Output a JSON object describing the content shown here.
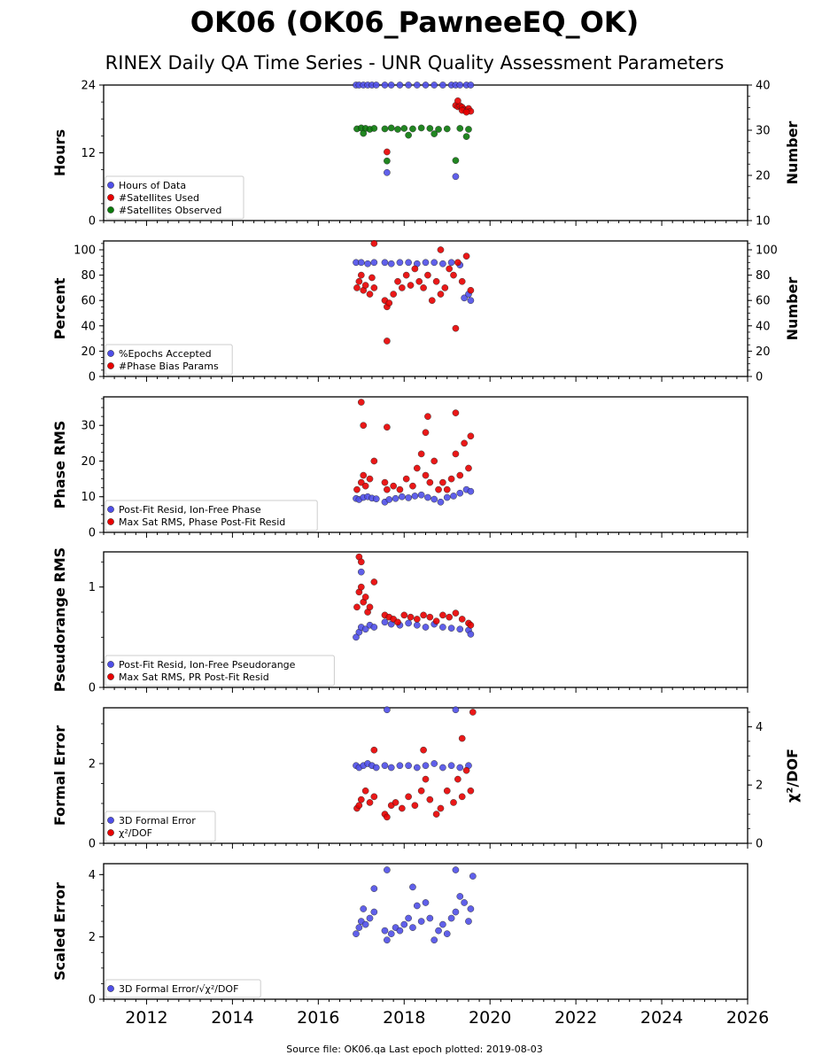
{
  "title": "OK06 (OK06_PawneeEQ_OK)",
  "subtitle": "RINEX Daily QA Time Series - UNR Quality Assessment Parameters",
  "footer": "Source file: OK06.qa Last epoch plotted: 2019-08-03",
  "colors": {
    "blue": "#4f4fe8",
    "red": "#e80000",
    "green": "#0a7a0a"
  },
  "chart_data": [
    {
      "type": "scatter",
      "ylabel": "Hours",
      "ylim": [
        0,
        24
      ],
      "yticks": [
        "0",
        "12",
        "24"
      ],
      "ytick_values": [
        0,
        12,
        24
      ],
      "y2label": "Number",
      "y2lim": [
        10,
        40
      ],
      "y2ticks": [
        "10",
        "20",
        "30",
        "40"
      ],
      "y2tick_values": [
        10,
        20,
        30,
        40
      ],
      "xlim": [
        2011.0,
        2026.0
      ],
      "legend": "bottom-left",
      "series": [
        {
          "name": "Hours of Data",
          "axis": "left",
          "color": "blue",
          "x": [
            2016.88,
            2016.95,
            2017.05,
            2017.15,
            2017.25,
            2017.35,
            2017.55,
            2017.7,
            2017.9,
            2018.1,
            2018.3,
            2018.5,
            2018.7,
            2018.9,
            2019.1,
            2019.2,
            2019.3,
            2019.45,
            2019.55,
            2017.6,
            2019.2
          ],
          "y": [
            24,
            24,
            24,
            24,
            24,
            24,
            24,
            24,
            24,
            24,
            24,
            24,
            24,
            24,
            24,
            24,
            24,
            24,
            24,
            8.5,
            7.8
          ]
        },
        {
          "name": "#Satellites Used",
          "axis": "right",
          "color": "red",
          "x": [
            2019.2,
            2019.25,
            2019.3,
            2019.35,
            2019.4,
            2019.45,
            2019.5,
            2019.55,
            2019.25,
            2019.35,
            2019.45,
            2017.6
          ],
          "y": [
            35.5,
            35.2,
            35.4,
            35.1,
            34.6,
            34.3,
            34.8,
            34.2,
            36.5,
            34.4,
            34.0,
            25.2
          ]
        },
        {
          "name": "#Satellites Observed",
          "axis": "right",
          "color": "green",
          "x": [
            2016.9,
            2017.0,
            2017.1,
            2017.2,
            2017.3,
            2017.55,
            2017.7,
            2017.85,
            2018.0,
            2018.2,
            2018.4,
            2018.6,
            2018.8,
            2019.0,
            2019.3,
            2019.5,
            2017.05,
            2018.1,
            2018.7,
            2019.45,
            2017.6,
            2019.2
          ],
          "y": [
            30.3,
            30.5,
            30.4,
            30.2,
            30.4,
            30.3,
            30.5,
            30.2,
            30.4,
            30.3,
            30.5,
            30.4,
            30.2,
            30.3,
            30.4,
            30.2,
            29.3,
            28.9,
            29.2,
            28.6,
            23.2,
            23.3
          ]
        }
      ]
    },
    {
      "type": "scatter",
      "ylabel": "Percent",
      "ylim": [
        0,
        107
      ],
      "yticks": [
        "0",
        "20",
        "40",
        "60",
        "80",
        "100"
      ],
      "ytick_values": [
        0,
        20,
        40,
        60,
        80,
        100
      ],
      "y2label": "Number",
      "y2lim": [
        0,
        107
      ],
      "y2ticks": [
        "0",
        "20",
        "40",
        "60",
        "80",
        "100"
      ],
      "y2tick_values": [
        0,
        20,
        40,
        60,
        80,
        100
      ],
      "xlim": [
        2011.0,
        2026.0
      ],
      "legend": "bottom-left",
      "series": [
        {
          "name": "%Epochs Accepted",
          "axis": "left",
          "color": "blue",
          "x": [
            2016.88,
            2017.0,
            2017.15,
            2017.3,
            2017.55,
            2017.7,
            2017.9,
            2018.1,
            2018.3,
            2018.5,
            2018.7,
            2018.9,
            2019.1,
            2019.3,
            2019.4,
            2019.5,
            2019.55
          ],
          "y": [
            90,
            90,
            89,
            90,
            90,
            89,
            90,
            90,
            89,
            90,
            90,
            89,
            90,
            88,
            62,
            65,
            60
          ]
        },
        {
          "name": "#Phase Bias Params",
          "axis": "left",
          "color": "red",
          "x": [
            2016.9,
            2016.95,
            2017.0,
            2017.05,
            2017.1,
            2017.2,
            2017.25,
            2017.3,
            2017.55,
            2017.6,
            2017.65,
            2017.75,
            2017.85,
            2017.95,
            2018.05,
            2018.15,
            2018.25,
            2018.35,
            2018.45,
            2018.55,
            2018.65,
            2018.75,
            2018.85,
            2018.95,
            2019.05,
            2019.15,
            2019.25,
            2019.35,
            2019.45,
            2019.55,
            2017.3,
            2017.6,
            2018.85,
            2019.2
          ],
          "y": [
            70,
            75,
            80,
            68,
            72,
            65,
            78,
            70,
            60,
            55,
            58,
            65,
            75,
            70,
            80,
            72,
            85,
            75,
            70,
            80,
            60,
            75,
            65,
            70,
            85,
            80,
            90,
            75,
            95,
            68,
            105,
            28,
            100,
            38
          ]
        }
      ]
    },
    {
      "type": "scatter",
      "ylabel": "Phase RMS",
      "ylim": [
        0,
        38
      ],
      "yticks": [
        "0",
        "10",
        "20",
        "30"
      ],
      "ytick_values": [
        0,
        10,
        20,
        30
      ],
      "xlim": [
        2011.0,
        2026.0
      ],
      "legend": "bottom-left",
      "series": [
        {
          "name": "Post-Fit Resid, Ion-Free Phase",
          "axis": "left",
          "color": "blue",
          "x": [
            2016.88,
            2016.95,
            2017.05,
            2017.15,
            2017.25,
            2017.35,
            2017.55,
            2017.65,
            2017.8,
            2017.95,
            2018.1,
            2018.25,
            2018.4,
            2018.55,
            2018.7,
            2018.85,
            2019.0,
            2019.15,
            2019.3,
            2019.45,
            2019.55
          ],
          "y": [
            9.5,
            9.2,
            9.8,
            10,
            9.6,
            9.4,
            8.5,
            9.2,
            9.5,
            10,
            9.7,
            10.2,
            10.5,
            9.8,
            9.3,
            8.5,
            9.8,
            10.2,
            11,
            12,
            11.5
          ]
        },
        {
          "name": "Max Sat RMS, Phase Post-Fit Resid",
          "axis": "left",
          "color": "red",
          "x": [
            2016.9,
            2017.0,
            2017.05,
            2017.1,
            2017.2,
            2017.3,
            2017.55,
            2017.6,
            2017.75,
            2017.9,
            2018.05,
            2018.2,
            2018.3,
            2018.4,
            2018.5,
            2018.6,
            2018.7,
            2018.8,
            2018.9,
            2019.0,
            2019.1,
            2019.2,
            2019.3,
            2019.4,
            2019.5,
            2019.55,
            2017.0,
            2017.05,
            2017.6,
            2018.55,
            2019.2,
            2018.5
          ],
          "y": [
            12,
            14,
            16,
            13,
            15,
            20,
            14,
            12,
            13,
            12,
            15,
            13,
            18,
            22,
            16,
            14,
            20,
            12,
            14,
            12,
            15,
            22,
            16,
            25,
            18,
            27,
            36.5,
            30,
            29.5,
            32.5,
            33.5,
            28
          ]
        }
      ]
    },
    {
      "type": "scatter",
      "ylabel": "Pseudorange RMS",
      "ylim": [
        0,
        1.35
      ],
      "yticks": [
        "0",
        "1"
      ],
      "ytick_values": [
        0,
        1
      ],
      "xlim": [
        2011.0,
        2026.0
      ],
      "legend": "bottom-left",
      "series": [
        {
          "name": "Post-Fit Resid, Ion-Free Pseudorange",
          "axis": "left",
          "color": "blue",
          "x": [
            2016.88,
            2016.95,
            2017.0,
            2017.1,
            2017.2,
            2017.3,
            2017.55,
            2017.7,
            2017.9,
            2018.1,
            2018.3,
            2018.5,
            2018.7,
            2018.9,
            2019.1,
            2019.3,
            2019.5,
            2019.55,
            2017.0
          ],
          "y": [
            0.5,
            0.55,
            0.6,
            0.58,
            0.62,
            0.6,
            0.65,
            0.63,
            0.62,
            0.64,
            0.62,
            0.6,
            0.63,
            0.6,
            0.59,
            0.58,
            0.57,
            0.53,
            1.15
          ]
        },
        {
          "name": "Max Sat RMS, PR Post-Fit Resid",
          "axis": "left",
          "color": "red",
          "x": [
            2016.9,
            2016.95,
            2017.0,
            2017.05,
            2017.1,
            2017.15,
            2017.2,
            2017.3,
            2017.55,
            2017.65,
            2017.75,
            2017.85,
            2018.0,
            2018.15,
            2018.3,
            2018.45,
            2018.6,
            2018.75,
            2018.9,
            2019.05,
            2019.2,
            2019.35,
            2019.5,
            2019.55,
            2016.95,
            2017.0
          ],
          "y": [
            0.8,
            0.95,
            1.0,
            0.85,
            0.9,
            0.75,
            0.8,
            1.05,
            0.72,
            0.7,
            0.68,
            0.65,
            0.72,
            0.7,
            0.68,
            0.72,
            0.7,
            0.66,
            0.72,
            0.7,
            0.74,
            0.68,
            0.64,
            0.62,
            1.3,
            1.25
          ]
        }
      ]
    },
    {
      "type": "scatter",
      "ylabel": "Formal Error",
      "ylim": [
        0,
        3.4
      ],
      "yticks": [
        "0",
        "2"
      ],
      "ytick_values": [
        0,
        2
      ],
      "y2label": "χ²/DOF",
      "y2lim": [
        0,
        4.65
      ],
      "y2ticks": [
        "0",
        "2",
        "4"
      ],
      "y2tick_values": [
        0,
        2,
        4
      ],
      "xlim": [
        2011.0,
        2026.0
      ],
      "legend": "bottom-left",
      "series": [
        {
          "name": "3D Formal Error",
          "axis": "left",
          "color": "blue",
          "x": [
            2016.88,
            2016.95,
            2017.05,
            2017.15,
            2017.25,
            2017.35,
            2017.55,
            2017.7,
            2017.9,
            2018.1,
            2018.3,
            2018.5,
            2018.7,
            2018.9,
            2019.1,
            2019.3,
            2019.5,
            2017.6,
            2019.2
          ],
          "y": [
            1.95,
            1.9,
            1.95,
            2.0,
            1.95,
            1.9,
            1.95,
            1.9,
            1.95,
            1.95,
            1.9,
            1.95,
            2.0,
            1.9,
            1.95,
            1.9,
            1.95,
            3.35,
            3.35
          ]
        },
        {
          "name": "χ²/DOF",
          "axis": "right",
          "color": "red",
          "x": [
            2016.9,
            2016.95,
            2017.0,
            2017.1,
            2017.2,
            2017.3,
            2017.55,
            2017.6,
            2017.7,
            2017.8,
            2017.95,
            2018.1,
            2018.25,
            2018.4,
            2018.5,
            2018.6,
            2018.75,
            2018.85,
            2019.0,
            2019.15,
            2019.25,
            2019.35,
            2019.45,
            2019.55,
            2017.3,
            2018.45,
            2019.35,
            2019.6
          ],
          "y": [
            1.2,
            1.3,
            1.5,
            1.8,
            1.4,
            1.6,
            1.0,
            0.9,
            1.3,
            1.4,
            1.2,
            1.6,
            1.3,
            1.8,
            2.2,
            1.5,
            1.0,
            1.2,
            1.8,
            1.4,
            2.2,
            1.6,
            2.5,
            1.8,
            3.2,
            3.2,
            3.6,
            4.5
          ]
        }
      ]
    },
    {
      "type": "scatter",
      "ylabel": "Scaled Error",
      "ylim": [
        0,
        4.35
      ],
      "yticks": [
        "0",
        "2",
        "4"
      ],
      "ytick_values": [
        0,
        2,
        4
      ],
      "xlim": [
        2011.0,
        2026.0
      ],
      "xticks": [
        "2012",
        "2014",
        "2016",
        "2018",
        "2020",
        "2022",
        "2024",
        "2026"
      ],
      "xtick_values": [
        2012,
        2014,
        2016,
        2018,
        2020,
        2022,
        2024,
        2026
      ],
      "legend": "bottom-left",
      "series": [
        {
          "name": "3D Formal Error/√χ²/DOF",
          "axis": "left",
          "color": "blue",
          "x": [
            2016.88,
            2016.95,
            2017.0,
            2017.05,
            2017.1,
            2017.2,
            2017.3,
            2017.55,
            2017.6,
            2017.7,
            2017.8,
            2017.9,
            2018.0,
            2018.1,
            2018.2,
            2018.3,
            2018.4,
            2018.5,
            2018.6,
            2018.7,
            2018.8,
            2018.9,
            2019.0,
            2019.1,
            2019.2,
            2019.3,
            2019.4,
            2019.5,
            2019.55,
            2017.6,
            2019.2,
            2019.6,
            2017.3,
            2018.2
          ],
          "y": [
            2.1,
            2.3,
            2.5,
            2.9,
            2.4,
            2.6,
            2.8,
            2.2,
            1.9,
            2.1,
            2.3,
            2.2,
            2.4,
            2.6,
            2.3,
            3.0,
            2.5,
            3.1,
            2.6,
            1.9,
            2.2,
            2.4,
            2.1,
            2.6,
            2.8,
            3.3,
            3.1,
            2.5,
            2.9,
            4.15,
            4.15,
            3.95,
            3.55,
            3.6
          ]
        }
      ]
    }
  ]
}
